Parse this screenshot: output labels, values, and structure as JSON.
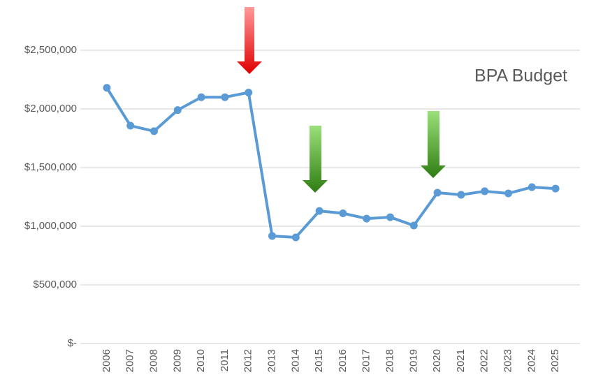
{
  "chart_data": {
    "type": "line",
    "annotation": "BPA Budget",
    "categories": [
      "2006",
      "2007",
      "2008",
      "2009",
      "2010",
      "2011",
      "2012",
      "2013",
      "2014",
      "2015",
      "2016",
      "2017",
      "2018",
      "2019",
      "2020",
      "2021",
      "2022",
      "2023",
      "2024",
      "2025"
    ],
    "series": [
      {
        "name": "BPA Budget",
        "color": "#5b9bd5",
        "values": [
          2180000,
          1857000,
          1810000,
          1990000,
          2100000,
          2100000,
          2140000,
          917000,
          905000,
          1130000,
          1110000,
          1065000,
          1077000,
          1006000,
          1286000,
          1268000,
          1298000,
          1280000,
          1333000,
          1321000
        ]
      }
    ],
    "ylim": [
      0,
      2500000
    ],
    "yticks": [
      {
        "value": 0,
        "label": "$-"
      },
      {
        "value": 500000,
        "label": "$500,000"
      },
      {
        "value": 1000000,
        "label": "$1,000,000"
      },
      {
        "value": 1500000,
        "label": "$1,500,000"
      },
      {
        "value": 2000000,
        "label": "$2,000,000"
      },
      {
        "value": 2500000,
        "label": "$2,500,000"
      }
    ],
    "grid": true
  }
}
